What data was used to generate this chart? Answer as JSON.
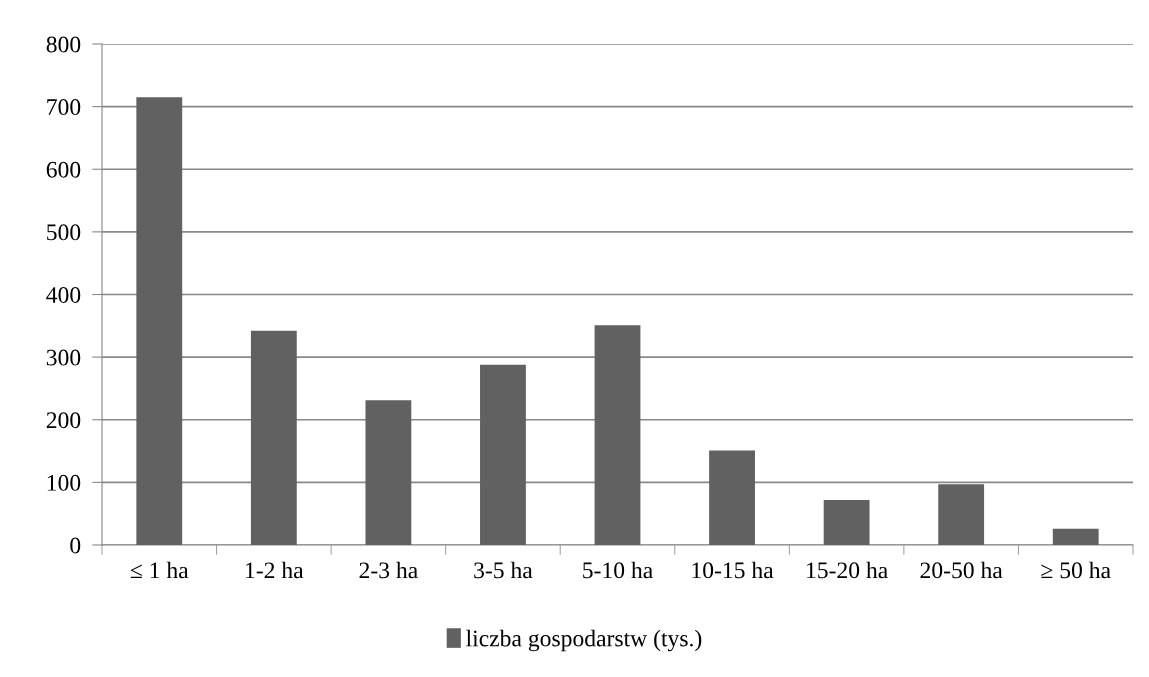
{
  "chart_data": {
    "type": "bar",
    "categories": [
      "≤ 1 ha",
      "1-2 ha",
      "2-3 ha",
      "3-5 ha",
      "5-10 ha",
      "10-15 ha",
      "15-20 ha",
      "20-50 ha",
      "≥ 50 ha"
    ],
    "series": [
      {
        "name": "liczba gospodarstw (tys.)",
        "color": "#616161",
        "values": [
          715,
          342,
          231,
          288,
          351,
          151,
          72,
          97,
          26
        ]
      }
    ],
    "ylim": [
      0,
      800
    ],
    "yticks": [
      0,
      100,
      200,
      300,
      400,
      500,
      600,
      700,
      800
    ],
    "grid": "y",
    "legend": "bottom"
  }
}
